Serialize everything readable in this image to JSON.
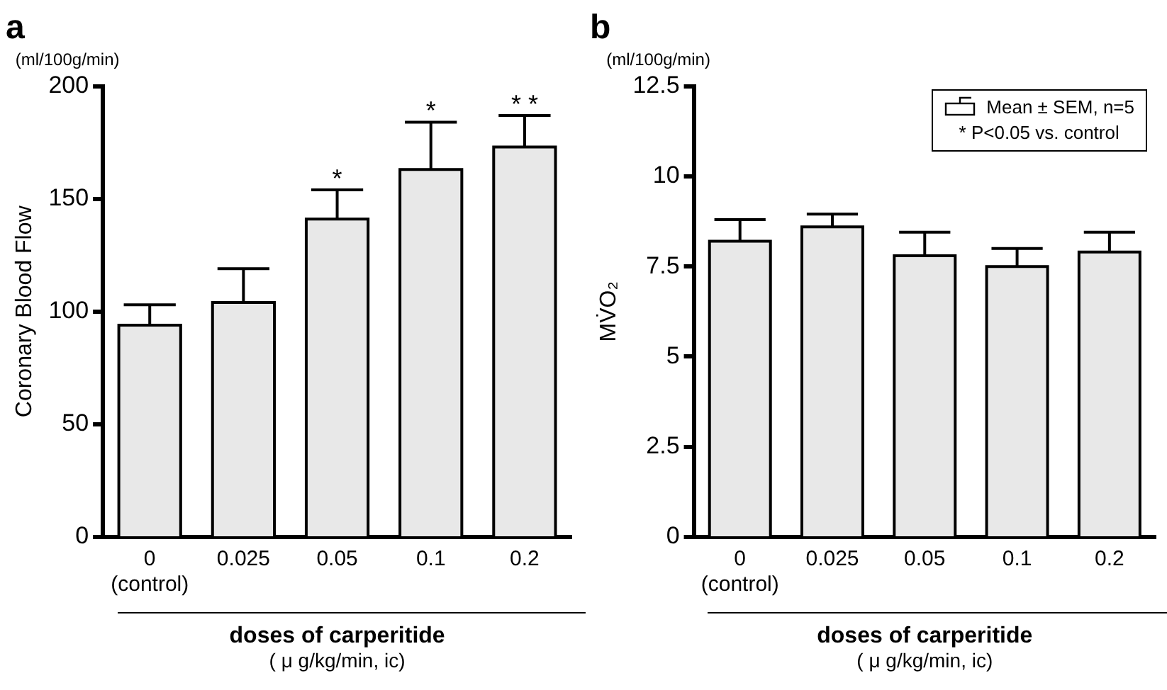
{
  "chart_data": [
    {
      "type": "bar",
      "title": "a",
      "categories": [
        "0\n(control)",
        "0.025",
        "0.05",
        "0.1",
        "0.2"
      ],
      "xlabel": "doses of carperitide\n( μ g/kg/min, ic)",
      "ylabel": "Coronary Blood Flow",
      "values": [
        94,
        104,
        141,
        163,
        173
      ],
      "errors": [
        9,
        15,
        13,
        21,
        14
      ],
      "color": "#e8e8e8",
      "ylim": [
        0,
        200
      ],
      "yticks": [
        0,
        50,
        100,
        150,
        200
      ],
      "grid": false,
      "legend": false,
      "annotations": [
        "(ml/100g/min)",
        {
          "text": "*",
          "x": "0.05",
          "y": 154
        },
        {
          "text": "*",
          "x": "0.1",
          "y": 184
        },
        {
          "text": "* *",
          "x": "0.2",
          "y": 187
        }
      ]
    },
    {
      "type": "bar",
      "title": "b",
      "categories": [
        "0\n(control)",
        "0.025",
        "0.05",
        "0.1",
        "0.2"
      ],
      "xlabel": "doses of carperitide\n( μ g/kg/min, ic)",
      "ylabel": "MV̇O₂",
      "values": [
        8.2,
        8.6,
        7.8,
        7.5,
        7.9
      ],
      "errors": [
        0.6,
        0.35,
        0.65,
        0.5,
        0.55
      ],
      "color": "#e8e8e8",
      "ylim": [
        0,
        12.5
      ],
      "yticks": [
        0,
        2.5,
        5,
        7.5,
        10,
        12.5
      ],
      "grid": false,
      "legend": false,
      "annotations": [
        "(ml/100g/min)",
        "Mean ± SEM, n=5",
        "* P<0.05 vs. control"
      ]
    }
  ]
}
